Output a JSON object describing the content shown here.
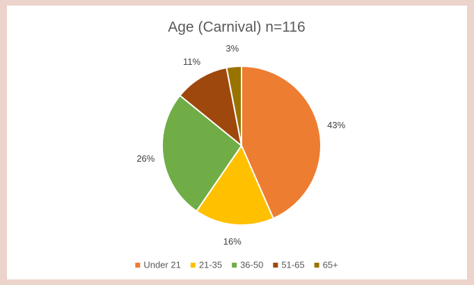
{
  "chart_data": {
    "type": "pie",
    "title": "Age (Carnival) n=116",
    "categories": [
      "Under 21",
      "21-35",
      "36-50",
      "51-65",
      "65+"
    ],
    "values": [
      43,
      16,
      26,
      11,
      3
    ],
    "value_labels": [
      "43%",
      "16%",
      "26%",
      "11%",
      "3%"
    ],
    "colors": [
      "#ed7d31",
      "#ffc000",
      "#70ad47",
      "#9e480e",
      "#997300"
    ],
    "legend": "bottom"
  }
}
